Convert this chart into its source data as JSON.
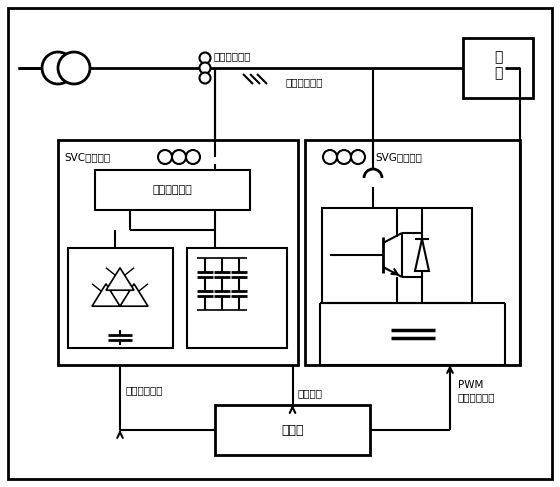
{
  "fig_width": 5.6,
  "fig_height": 4.87,
  "dpi": 100,
  "bg_color": "#ffffff",
  "lc": "#000000",
  "labels": {
    "load_line1": "负",
    "load_line2": "荷",
    "sys_current": "系统电流采样",
    "sys_voltage": "系统电压采样",
    "svc_current": "SVC电流采样",
    "svg_current": "SVG电流采样",
    "switch_unit": "投切控制单元",
    "controller": "控制器",
    "switch_signal": "投切控制信号",
    "sample_signal": "采样信号",
    "pwm1": "PWM",
    "pwm2": "脉冲控制信号"
  }
}
